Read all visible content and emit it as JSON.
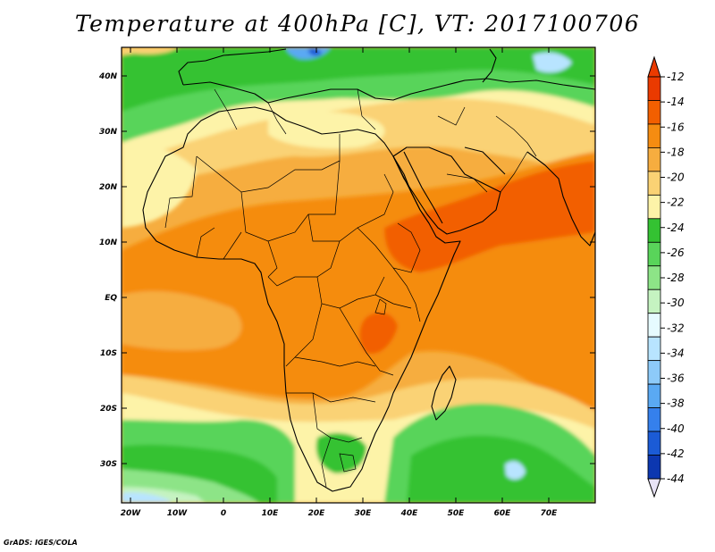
{
  "title": "Temperature at 400hPa [C], VT: 2017100706",
  "credit": "GrADS: IGES/COLA",
  "map": {
    "lat_labels": [
      "40N",
      "30N",
      "20N",
      "10N",
      "EQ",
      "10S",
      "20S",
      "30S"
    ],
    "lon_labels": [
      "20W",
      "10W",
      "0",
      "10E",
      "20E",
      "30E",
      "40E",
      "50E",
      "60E",
      "70E"
    ]
  },
  "colorbar": {
    "labels": [
      "-12",
      "-14",
      "-16",
      "-18",
      "-20",
      "-22",
      "-24",
      "-26",
      "-28",
      "-30",
      "-32",
      "-34",
      "-36",
      "-38",
      "-40",
      "-42",
      "-44"
    ],
    "colors": [
      "#ea3a00",
      "#f25f00",
      "#f58c11",
      "#f6ad3f",
      "#fad274",
      "#fdf3a8",
      "#34c232",
      "#59d45a",
      "#8de487",
      "#c5f3c1",
      "#e6fbff",
      "#b8e4ff",
      "#8dcaf9",
      "#5aa9f3",
      "#3580ec",
      "#1b5bd6",
      "#0c37b0"
    ],
    "top_triangle_color": "#ea3a00",
    "bottom_triangle_color": "#e8e3f6"
  }
}
